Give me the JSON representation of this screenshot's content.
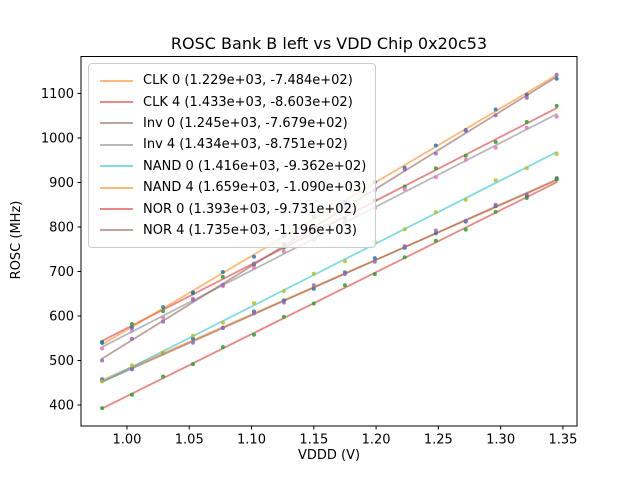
{
  "figure": {
    "title": "ROSC Bank B left vs VDD Chip 0x20c53",
    "xlabel": "VDDD (V)",
    "ylabel": "ROSC (MHz)"
  },
  "chart_data": {
    "type": "scatter",
    "title": "ROSC Bank B left vs VDD Chip 0x20c53",
    "xlabel": "VDDD (V)",
    "ylabel": "ROSC (MHz)",
    "grid": false,
    "legend_position": "upper left",
    "xlim": [
      0.9631,
      1.3613
    ],
    "ylim": [
      352.9,
      1183.0
    ],
    "x_ticks": [
      {
        "v": 1.0,
        "label": "1.00"
      },
      {
        "v": 1.05,
        "label": "1.05"
      },
      {
        "v": 1.1,
        "label": "1.10"
      },
      {
        "v": 1.15,
        "label": "1.15"
      },
      {
        "v": 1.2,
        "label": "1.20"
      },
      {
        "v": 1.25,
        "label": "1.25"
      },
      {
        "v": 1.3,
        "label": "1.30"
      },
      {
        "v": 1.35,
        "label": "1.35"
      }
    ],
    "y_ticks": [
      {
        "v": 400,
        "label": "400"
      },
      {
        "v": 500,
        "label": "500"
      },
      {
        "v": 600,
        "label": "600"
      },
      {
        "v": 700,
        "label": "700"
      },
      {
        "v": 800,
        "label": "800"
      },
      {
        "v": 900,
        "label": "900"
      },
      {
        "v": 1000,
        "label": "1000"
      },
      {
        "v": 1100,
        "label": "1100"
      }
    ],
    "fit_range": [
      0.98,
      1.345
    ],
    "x": [
      0.98,
      1.004,
      1.029,
      1.053,
      1.077,
      1.102,
      1.126,
      1.15,
      1.175,
      1.199,
      1.223,
      1.248,
      1.272,
      1.296,
      1.321,
      1.345
    ],
    "series": [
      {
        "name": "CLK 0",
        "legend_label": "CLK 0 (1.229e+03, -7.484e+02)",
        "slope": 1229,
        "intercept": -748.4,
        "line_color": "#ff7f0e",
        "dot_color": "#1f77b4",
        "y": [
          458,
          482,
          517,
          549,
          573,
          610,
          635,
          661,
          698,
          730,
          753,
          786,
          812,
          847,
          870,
          907
        ]
      },
      {
        "name": "CLK 4",
        "legend_label": "CLK 4 (1.433e+03, -8.603e+02)",
        "slope": 1433,
        "intercept": -860.3,
        "line_color": "#d62728",
        "dot_color": "#2ca02c",
        "y": [
          542,
          582,
          611,
          651,
          688,
          715,
          754,
          791,
          818,
          860,
          891,
          932,
          960,
          991,
          1036,
          1072
        ]
      },
      {
        "name": "Inv 0",
        "legend_label": "Inv 0 (1.245e+03, -7.679e+02)",
        "slope": 1245,
        "intercept": -767.9,
        "line_color": "#8c564b",
        "dot_color": "#9467bd",
        "y": [
          455,
          480,
          517,
          540,
          574,
          606,
          630,
          669,
          694,
          722,
          757,
          792,
          814,
          850,
          872,
          910
        ]
      },
      {
        "name": "Inv 4",
        "legend_label": "Inv 4 (1.434e+03, -8.751e+02)",
        "slope": 1434,
        "intercept": -875.1,
        "line_color": "#7f7f7f",
        "dot_color": "#e377c2",
        "y": [
          527,
          567,
          596,
          639,
          667,
          708,
          745,
          770,
          811,
          842,
          885,
          912,
          951,
          978,
          1023,
          1048
        ]
      },
      {
        "name": "NAND 0",
        "legend_label": "NAND 0 (1.416e+03, -9.362e+02)",
        "slope": 1416,
        "intercept": -936.2,
        "line_color": "#17becf",
        "dot_color": "#bcbd22",
        "y": [
          453,
          489,
          518,
          556,
          585,
          629,
          656,
          695,
          723,
          766,
          795,
          833,
          861,
          905,
          932,
          964
        ]
      },
      {
        "name": "NAND 4",
        "legend_label": "NAND 4 (1.659e+03, -1.090e+03)",
        "slope": 1659,
        "intercept": -1090,
        "line_color": "#ff7f0e",
        "dot_color": "#1f77b4",
        "y": [
          540,
          574,
          620,
          653,
          699,
          733,
          779,
          823,
          856,
          901,
          933,
          983,
          1018,
          1064,
          1097,
          1133
        ]
      },
      {
        "name": "NOR 0",
        "legend_label": "NOR 0 (1.393e+03, -9.731e+02)",
        "slope": 1393,
        "intercept": -973.1,
        "line_color": "#d62728",
        "dot_color": "#2ca02c",
        "y": [
          393,
          423,
          464,
          492,
          530,
          558,
          598,
          628,
          669,
          694,
          732,
          769,
          794,
          834,
          865,
          908
        ]
      },
      {
        "name": "NOR 4",
        "legend_label": "NOR 4 (1.735e+03, -1.196e+03)",
        "slope": 1735,
        "intercept": -1196,
        "line_color": "#8c564b",
        "dot_color": "#9467bd",
        "y": [
          500,
          549,
          587,
          636,
          670,
          718,
          762,
          794,
          845,
          883,
          929,
          965,
          1016,
          1051,
          1090,
          1142
        ]
      }
    ]
  }
}
